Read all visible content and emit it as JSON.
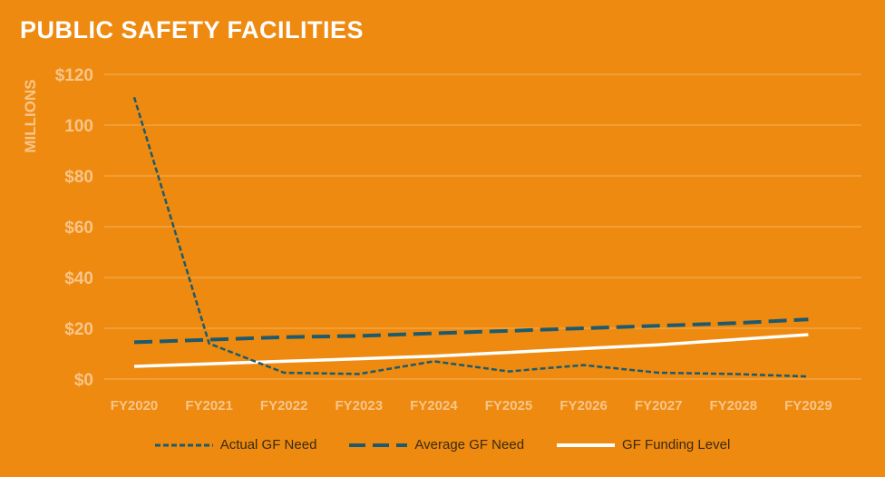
{
  "colors": {
    "background": "#EE8A0F",
    "grid": "#F5B35E",
    "axis_text": "#F8C58A",
    "actual": "#1D5A6E",
    "average": "#1D5A6E",
    "funding": "#FFFFFF",
    "title": "#FFFFFF"
  },
  "chart_data": {
    "type": "line",
    "title": "PUBLIC SAFETY FACILITIES",
    "xlabel": "",
    "ylabel": "MILLIONS",
    "ylim": [
      0,
      120
    ],
    "yticks": [
      0,
      20,
      40,
      60,
      80,
      100,
      120
    ],
    "ytick_labels": [
      "$0",
      "$20",
      "$40",
      "$60",
      "$80",
      "100",
      "$120"
    ],
    "grid": true,
    "legend_position": "bottom",
    "categories": [
      "FY2020",
      "FY2021",
      "FY2022",
      "FY2023",
      "FY2024",
      "FY2025",
      "FY2026",
      "FY2027",
      "FY2028",
      "FY2029"
    ],
    "series": [
      {
        "name": "Actual GF Need",
        "style": "dotted-dash",
        "values": [
          111,
          14,
          2.5,
          2,
          7,
          3,
          5.5,
          2.5,
          2,
          1
        ]
      },
      {
        "name": "Average GF Need",
        "style": "long-dash",
        "values": [
          14.5,
          15.5,
          16.5,
          17,
          18,
          19,
          20,
          21,
          22,
          23.5
        ]
      },
      {
        "name": "GF Funding Level",
        "style": "solid",
        "values": [
          5,
          6,
          7,
          8,
          9,
          10.5,
          12,
          13.5,
          15.5,
          17.5
        ]
      }
    ]
  }
}
